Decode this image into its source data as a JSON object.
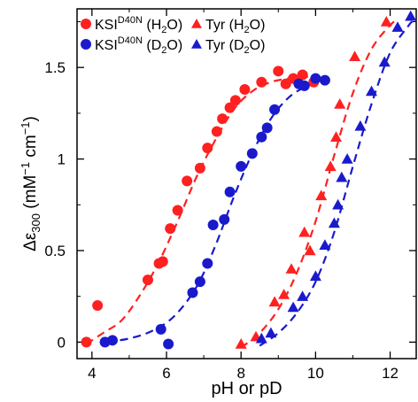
{
  "chart_data": {
    "type": "scatter",
    "xlabel": "pH or pD",
    "ylabel": {
      "prefix": "Δε",
      "sub": "300",
      "units": " (mM",
      "sup1": "−1",
      "mid": " cm",
      "sup2": "−1",
      "close": ")"
    },
    "xlim": [
      3.6,
      12.7
    ],
    "ylim": [
      -0.09,
      1.82
    ],
    "x_ticks": [
      4,
      6,
      8,
      10,
      12
    ],
    "y_ticks": [
      {
        "value": 0,
        "label": "0"
      },
      {
        "value": 0.5,
        "label": "0.5"
      },
      {
        "value": 1,
        "label": "1"
      },
      {
        "value": 1.5,
        "label": "1.5"
      }
    ],
    "legend_placement": "top-left",
    "series": [
      {
        "name": "KSI(D40N) (H2O)",
        "legend": {
          "main": "KSI",
          "sup": "D40N",
          "pre_sub": " (H",
          "sub": "2",
          "post_sub": "O)"
        },
        "marker": "circle",
        "color": "#ff2020",
        "points": [
          [
            3.85,
            0.0
          ],
          [
            4.15,
            0.2
          ],
          [
            5.5,
            0.34
          ],
          [
            5.8,
            0.43
          ],
          [
            5.9,
            0.44
          ],
          [
            6.1,
            0.62
          ],
          [
            6.3,
            0.72
          ],
          [
            6.55,
            0.88
          ],
          [
            6.9,
            0.95
          ],
          [
            7.1,
            1.06
          ],
          [
            7.35,
            1.15
          ],
          [
            7.5,
            1.22
          ],
          [
            7.7,
            1.28
          ],
          [
            7.85,
            1.32
          ],
          [
            8.1,
            1.38
          ],
          [
            8.55,
            1.42
          ],
          [
            9.0,
            1.48
          ],
          [
            9.2,
            1.41
          ],
          [
            9.4,
            1.44
          ],
          [
            9.65,
            1.46
          ],
          [
            9.95,
            1.42
          ]
        ],
        "fit": [
          [
            3.85,
            -0.01
          ],
          [
            4.3,
            0.05
          ],
          [
            4.8,
            0.12
          ],
          [
            5.3,
            0.26
          ],
          [
            5.8,
            0.44
          ],
          [
            6.3,
            0.66
          ],
          [
            6.8,
            0.9
          ],
          [
            7.3,
            1.1
          ],
          [
            7.8,
            1.27
          ],
          [
            8.3,
            1.37
          ],
          [
            8.8,
            1.42
          ],
          [
            9.3,
            1.44
          ],
          [
            9.8,
            1.45
          ]
        ]
      },
      {
        "name": "KSI(D40N) (D2O)",
        "legend": {
          "main": "KSI",
          "sup": "D40N",
          "pre_sub": " (D",
          "sub": "2",
          "post_sub": "O)"
        },
        "marker": "circle",
        "color": "#1a1acc",
        "points": [
          [
            4.35,
            0.0
          ],
          [
            4.55,
            0.01
          ],
          [
            5.85,
            0.07
          ],
          [
            6.05,
            -0.01
          ],
          [
            6.7,
            0.27
          ],
          [
            6.9,
            0.33
          ],
          [
            7.1,
            0.43
          ],
          [
            7.25,
            0.64
          ],
          [
            7.55,
            0.67
          ],
          [
            7.7,
            0.82
          ],
          [
            8.0,
            0.96
          ],
          [
            8.3,
            1.03
          ],
          [
            8.55,
            1.12
          ],
          [
            8.7,
            1.17
          ],
          [
            8.9,
            1.27
          ],
          [
            9.55,
            1.41
          ],
          [
            9.7,
            1.4
          ],
          [
            10.0,
            1.44
          ],
          [
            10.25,
            1.43
          ]
        ],
        "fit": [
          [
            4.4,
            0.0
          ],
          [
            5.0,
            0.02
          ],
          [
            5.6,
            0.06
          ],
          [
            6.2,
            0.14
          ],
          [
            6.8,
            0.3
          ],
          [
            7.3,
            0.52
          ],
          [
            7.8,
            0.79
          ],
          [
            8.3,
            1.03
          ],
          [
            8.8,
            1.22
          ],
          [
            9.3,
            1.34
          ],
          [
            9.8,
            1.4
          ],
          [
            10.25,
            1.43
          ]
        ]
      },
      {
        "name": "Tyr (H2O)",
        "legend": {
          "main": "Tyr",
          "sup": "",
          "pre_sub": " (H",
          "sub": "2",
          "post_sub": "O)"
        },
        "marker": "triangle",
        "color": "#ff2020",
        "points": [
          [
            8.0,
            -0.01
          ],
          [
            8.4,
            0.03
          ],
          [
            8.9,
            0.22
          ],
          [
            9.15,
            0.26
          ],
          [
            9.35,
            0.4
          ],
          [
            9.7,
            0.6
          ],
          [
            9.85,
            0.5
          ],
          [
            10.15,
            0.8
          ],
          [
            10.4,
            0.96
          ],
          [
            10.55,
            1.12
          ],
          [
            10.65,
            1.3
          ],
          [
            11.05,
            1.56
          ],
          [
            11.9,
            1.75
          ]
        ],
        "fit": [
          [
            8.0,
            -0.03
          ],
          [
            8.5,
            0.05
          ],
          [
            9.0,
            0.18
          ],
          [
            9.5,
            0.38
          ],
          [
            10.0,
            0.66
          ],
          [
            10.5,
            1.02
          ],
          [
            11.0,
            1.36
          ],
          [
            11.5,
            1.6
          ],
          [
            12.0,
            1.73
          ],
          [
            12.2,
            1.76
          ]
        ]
      },
      {
        "name": "Tyr (D2O)",
        "legend": {
          "main": "Tyr",
          "sup": "",
          "pre_sub": " (D",
          "sub": "2",
          "post_sub": "O)"
        },
        "marker": "triangle",
        "color": "#1a1acc",
        "points": [
          [
            8.55,
            0.02
          ],
          [
            8.8,
            0.05
          ],
          [
            9.4,
            0.19
          ],
          [
            9.65,
            0.25
          ],
          [
            10.0,
            0.36
          ],
          [
            10.25,
            0.53
          ],
          [
            10.5,
            0.65
          ],
          [
            10.6,
            0.75
          ],
          [
            10.7,
            0.9
          ],
          [
            10.85,
            1.0
          ],
          [
            11.2,
            1.18
          ],
          [
            11.5,
            1.37
          ],
          [
            11.85,
            1.53
          ],
          [
            12.2,
            1.72
          ],
          [
            12.55,
            1.78
          ]
        ],
        "fit": [
          [
            8.5,
            -0.02
          ],
          [
            9.0,
            0.05
          ],
          [
            9.5,
            0.16
          ],
          [
            10.0,
            0.33
          ],
          [
            10.5,
            0.6
          ],
          [
            11.0,
            0.96
          ],
          [
            11.5,
            1.3
          ],
          [
            12.0,
            1.58
          ],
          [
            12.5,
            1.73
          ],
          [
            12.6,
            1.75
          ]
        ]
      }
    ]
  }
}
